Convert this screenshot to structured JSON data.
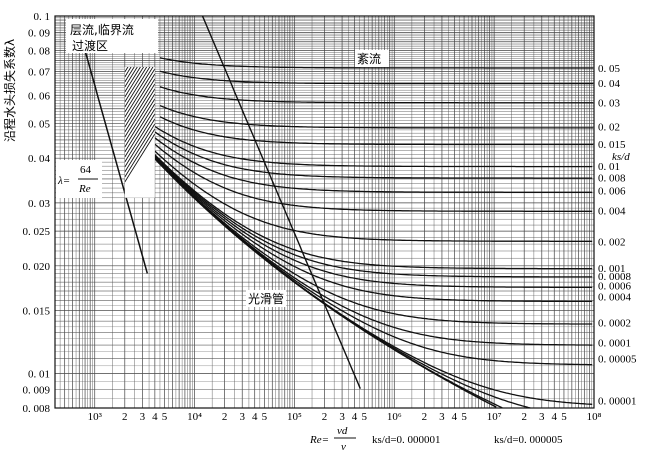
{
  "chart_data": {
    "type": "line",
    "title": "",
    "ylabel": "沿程水头损失系数λ",
    "x_scale": "log",
    "y_scale": "log",
    "xlim": [
      400,
      100000000
    ],
    "ylim": [
      0.008,
      0.1
    ],
    "grid": true,
    "y_ticks": [
      {
        "v": 0.1,
        "t": "0. 1"
      },
      {
        "v": 0.09,
        "t": "0. 09"
      },
      {
        "v": 0.08,
        "t": "0. 08"
      },
      {
        "v": 0.07,
        "t": "0. 07"
      },
      {
        "v": 0.06,
        "t": "0. 06"
      },
      {
        "v": 0.05,
        "t": "0. 05"
      },
      {
        "v": 0.04,
        "t": "0. 04"
      },
      {
        "v": 0.03,
        "t": "0. 03"
      },
      {
        "v": 0.025,
        "t": "0. 025"
      },
      {
        "v": 0.02,
        "t": "0. 020"
      },
      {
        "v": 0.015,
        "t": "0. 015"
      },
      {
        "v": 0.01,
        "t": "0. 01"
      },
      {
        "v": 0.009,
        "t": "0. 009"
      },
      {
        "v": 0.008,
        "t": "0. 008"
      }
    ],
    "x_ticks": [
      {
        "v": 1000,
        "t": "10³"
      },
      {
        "v": 2000,
        "t": "2"
      },
      {
        "v": 3000,
        "t": "3"
      },
      {
        "v": 4000,
        "t": "4"
      },
      {
        "v": 5000,
        "t": "5"
      },
      {
        "v": 10000,
        "t": "10⁴"
      },
      {
        "v": 20000,
        "t": "2"
      },
      {
        "v": 30000,
        "t": "3"
      },
      {
        "v": 40000,
        "t": "4"
      },
      {
        "v": 50000,
        "t": "5"
      },
      {
        "v": 100000,
        "t": "10⁵"
      },
      {
        "v": 200000,
        "t": "2"
      },
      {
        "v": 300000,
        "t": "3"
      },
      {
        "v": 400000,
        "t": "4"
      },
      {
        "v": 500000,
        "t": "5"
      },
      {
        "v": 1000000,
        "t": "10⁶"
      },
      {
        "v": 2000000,
        "t": "2"
      },
      {
        "v": 3000000,
        "t": "3"
      },
      {
        "v": 4000000,
        "t": "4"
      },
      {
        "v": 5000000,
        "t": "5"
      },
      {
        "v": 10000000,
        "t": "10⁷"
      },
      {
        "v": 20000000,
        "t": "2"
      },
      {
        "v": 30000000,
        "t": "3"
      },
      {
        "v": 40000000,
        "t": "4"
      },
      {
        "v": 50000000,
        "t": "5"
      },
      {
        "v": 100000000,
        "t": "10⁸"
      }
    ],
    "right_label_title": "ks/d",
    "rough_curves": [
      {
        "label": "0. 05",
        "ks_d": 0.05,
        "fully_rough": 0.0716
      },
      {
        "label": "0. 04",
        "ks_d": 0.04,
        "fully_rough": 0.065
      },
      {
        "label": "0. 03",
        "ks_d": 0.03,
        "fully_rough": 0.0572
      },
      {
        "label": "0. 02",
        "ks_d": 0.02,
        "fully_rough": 0.049
      },
      {
        "label": "0. 015",
        "ks_d": 0.015,
        "fully_rough": 0.0438
      },
      {
        "label": "0. 01",
        "ks_d": 0.01,
        "fully_rough": 0.038
      },
      {
        "label": "0. 008",
        "ks_d": 0.008,
        "fully_rough": 0.0353
      },
      {
        "label": "0. 006",
        "ks_d": 0.006,
        "fully_rough": 0.0325
      },
      {
        "label": "0. 004",
        "ks_d": 0.004,
        "fully_rough": 0.0286
      },
      {
        "label": "0. 002",
        "ks_d": 0.002,
        "fully_rough": 0.0234
      },
      {
        "label": "0. 001",
        "ks_d": 0.001,
        "fully_rough": 0.0197
      },
      {
        "label": "0. 0008",
        "ks_d": 0.0008,
        "fully_rough": 0.0187
      },
      {
        "label": "0. 0006",
        "ks_d": 0.0006,
        "fully_rough": 0.0176
      },
      {
        "label": "0. 0004",
        "ks_d": 0.0004,
        "fully_rough": 0.0164
      },
      {
        "label": "0. 0002",
        "ks_d": 0.0002,
        "fully_rough": 0.0139
      },
      {
        "label": "0. 0001",
        "ks_d": 0.0001,
        "fully_rough": 0.0122
      },
      {
        "label": "0. 00005",
        "ks_d": 5e-05,
        "fully_rough": 0.011
      },
      {
        "label": "0. 00001",
        "ks_d": 1e-05,
        "fully_rough": 0.0084
      }
    ],
    "extra_curves": [
      5e-06,
      1e-06
    ],
    "laminar_formula": {
      "prefix": "λ=",
      "numerator": "64",
      "denominator": "Re"
    },
    "annotations": {
      "laminar_region": "层流,临界流",
      "transition_region": "过渡区",
      "turbulent": "紊流",
      "smooth_pipe": "光滑管",
      "re_prefix": "Re=",
      "re_numerator": "vd",
      "re_denominator": "ν",
      "ks_d_1": "ks/d=0. 000001",
      "ks_d_2": "ks/d=0. 000005"
    },
    "colors": {
      "line": "#111111",
      "grid": "#555555"
    }
  }
}
